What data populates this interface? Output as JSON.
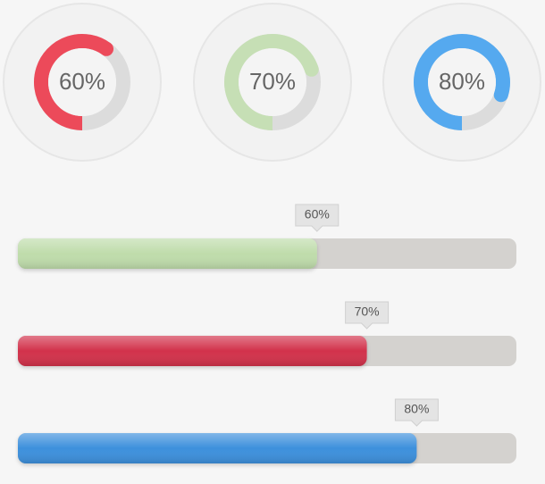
{
  "rings": [
    {
      "value": 60,
      "label": "60%",
      "color": "#ec4a5a"
    },
    {
      "value": 70,
      "label": "70%",
      "color": "#c6dfb5"
    },
    {
      "value": 80,
      "label": "80%",
      "color": "#55a9ef"
    }
  ],
  "bars": [
    {
      "value": 60,
      "label": "60%",
      "color": "#bfdcab"
    },
    {
      "value": 70,
      "label": "70%",
      "color": "#d2304b"
    },
    {
      "value": 80,
      "label": "80%",
      "color": "#3e90dc"
    }
  ]
}
